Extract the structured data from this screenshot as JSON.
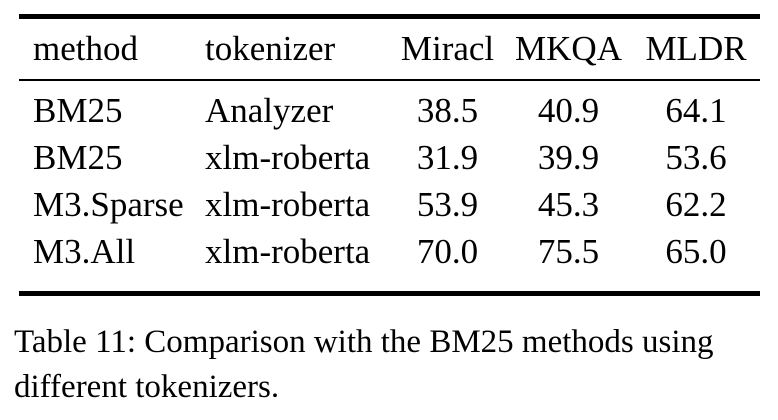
{
  "table": {
    "columns": [
      "method",
      "tokenizer",
      "Miracl",
      "MKQA",
      "MLDR"
    ],
    "rows": [
      [
        "BM25",
        "Analyzer",
        "38.5",
        "40.9",
        "64.1"
      ],
      [
        "BM25",
        "xlm-roberta",
        "31.9",
        "39.9",
        "53.6"
      ],
      [
        "M3.Sparse",
        "xlm-roberta",
        "53.9",
        "45.3",
        "62.2"
      ],
      [
        "M3.All",
        "xlm-roberta",
        "70.0",
        "75.5",
        "65.0"
      ]
    ]
  },
  "caption": {
    "text": "Table 11: Comparison with the BM25 methods using different tokenizers."
  },
  "colors": {
    "text": "#000000",
    "background": "#ffffff",
    "rule": "#000000"
  }
}
